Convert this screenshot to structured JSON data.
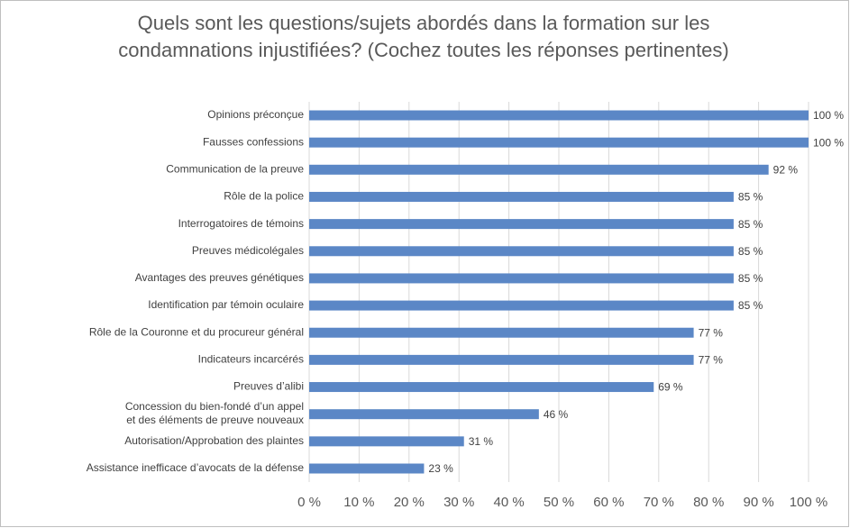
{
  "chart_data": {
    "type": "hbar",
    "title": "Quels sont les questions/sujets abordés dans la formation sur les\ncondamnations injustifiées? (Cochez toutes les réponses pertinentes)",
    "categories": [
      "Opinions préconçue",
      "Fausses confessions",
      "Communication de la preuve",
      "Rôle de la police",
      "Interrogatoires de témoins",
      "Preuves médicolégales",
      "Avantages des preuves génétiques",
      "Identification par témoin oculaire",
      "Rôle de la Couronne et du procureur général",
      "Indicateurs incarcérés",
      "Preuves d’alibi",
      "Concession du bien-fondé d’un appel\net des éléments de preuve nouveaux",
      "Autorisation/Approbation des plaintes",
      "Assistance inefficace d’avocats de la défense"
    ],
    "values": [
      100,
      100,
      92,
      85,
      85,
      85,
      85,
      85,
      77,
      77,
      69,
      46,
      31,
      23
    ],
    "value_labels": [
      "100 %",
      "100 %",
      "92 %",
      "85 %",
      "85 %",
      "85 %",
      "85 %",
      "85 %",
      "77 %",
      "77 %",
      "69 %",
      "46 %",
      "31 %",
      "23 %"
    ],
    "color": "#5b87c6",
    "xlim": [
      0,
      100
    ],
    "xticks": [
      {
        "value": 0,
        "label": "0 %"
      },
      {
        "value": 10,
        "label": "10 %"
      },
      {
        "value": 20,
        "label": "20 %"
      },
      {
        "value": 30,
        "label": "30 %"
      },
      {
        "value": 40,
        "label": "40 %"
      },
      {
        "value": 50,
        "label": "50 %"
      },
      {
        "value": 60,
        "label": "60 %"
      },
      {
        "value": 70,
        "label": "70 %"
      },
      {
        "value": 80,
        "label": "80 %"
      },
      {
        "value": 90,
        "label": "90 %"
      },
      {
        "value": 100,
        "label": "100 %"
      }
    ],
    "grid": true
  }
}
